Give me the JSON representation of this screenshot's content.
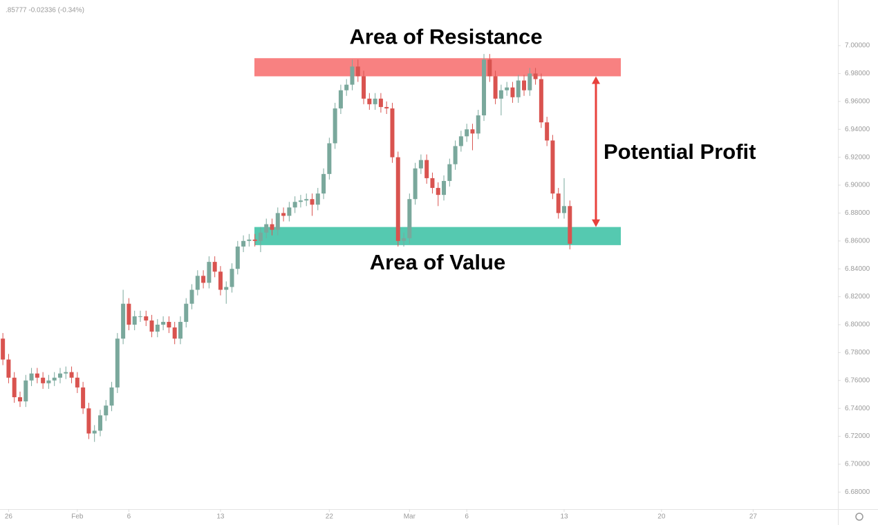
{
  "chart_data": {
    "type": "candlestick",
    "header_text": ".85777 -0.02336 (-0.34%)",
    "up_color": "#7aa89c",
    "down_color": "#d9534f",
    "annotation": "Potential Profit",
    "arrow_color": "#e8413c",
    "zones": [
      {
        "name": "Area of Resistance",
        "from": 6.978,
        "to": 6.991,
        "color": "#f88181"
      },
      {
        "name": "Area of Value",
        "from": 6.857,
        "to": 6.87,
        "color": "#55c9b0"
      }
    ],
    "xlim": [
      -0.5,
      145.8
    ],
    "xticks": [
      {
        "value": 1,
        "label": "26"
      },
      {
        "value": 13,
        "label": "Feb"
      },
      {
        "value": 22,
        "label": "6"
      },
      {
        "value": 38,
        "label": "13"
      },
      {
        "value": 57,
        "label": "22"
      },
      {
        "value": 71,
        "label": "Mar"
      },
      {
        "value": 81,
        "label": "6"
      },
      {
        "value": 98,
        "label": "13"
      },
      {
        "value": 115,
        "label": "20"
      },
      {
        "value": 131,
        "label": "27"
      }
    ],
    "ylim": [
      6.6678,
      7.0327
    ],
    "yticks": [
      {
        "value": 7.0,
        "label": "7.00000"
      },
      {
        "value": 6.98,
        "label": "6.98000"
      },
      {
        "value": 6.96,
        "label": "6.96000"
      },
      {
        "value": 6.94,
        "label": "6.94000"
      },
      {
        "value": 6.92,
        "label": "6.92000"
      },
      {
        "value": 6.9,
        "label": "6.90000"
      },
      {
        "value": 6.88,
        "label": "6.88000"
      },
      {
        "value": 6.86,
        "label": "6.86000"
      },
      {
        "value": 6.84,
        "label": "6.84000"
      },
      {
        "value": 6.82,
        "label": "6.82000"
      },
      {
        "value": 6.8,
        "label": "6.80000"
      },
      {
        "value": 6.78,
        "label": "6.78000"
      },
      {
        "value": 6.76,
        "label": "6.76000"
      },
      {
        "value": 6.74,
        "label": "6.74000"
      },
      {
        "value": 6.72,
        "label": "6.72000"
      },
      {
        "value": 6.7,
        "label": "6.70000"
      },
      {
        "value": 6.68,
        "label": "6.68000"
      }
    ],
    "open": [
      6.79,
      6.775,
      6.762,
      6.748,
      6.745,
      6.76,
      6.765,
      6.762,
      6.758,
      6.76,
      6.762,
      6.765,
      6.766,
      6.762,
      6.755,
      6.74,
      6.722,
      6.724,
      6.735,
      6.742,
      6.755,
      6.79,
      6.815,
      6.8,
      6.806,
      6.806,
      6.803,
      6.795,
      6.8,
      6.802,
      6.798,
      6.79,
      6.802,
      6.815,
      6.825,
      6.835,
      6.83,
      6.845,
      6.838,
      6.825,
      6.827,
      6.84,
      6.856,
      6.86,
      6.861,
      6.86,
      6.866,
      6.872,
      6.868,
      6.88,
      6.878,
      6.884,
      6.888,
      6.889,
      6.89,
      6.886,
      6.894,
      6.908,
      6.93,
      6.955,
      6.968,
      6.972,
      6.985,
      6.978,
      6.962,
      6.958,
      6.962,
      6.956,
      6.955,
      6.92,
      6.86,
      6.862,
      6.89,
      6.912,
      6.918,
      6.905,
      6.898,
      6.893,
      6.903,
      6.915,
      6.928,
      6.935,
      6.94,
      6.937,
      6.95,
      6.99,
      6.978,
      6.962,
      6.968,
      6.97,
      6.963,
      6.975,
      6.968,
      6.98,
      6.976,
      6.945,
      6.932,
      6.894,
      6.88,
      6.885
    ],
    "high": [
      6.794,
      6.779,
      6.766,
      6.752,
      6.764,
      6.769,
      6.769,
      6.766,
      6.764,
      6.766,
      6.769,
      6.77,
      6.77,
      6.766,
      6.759,
      6.744,
      6.728,
      6.739,
      6.746,
      6.759,
      6.794,
      6.825,
      6.819,
      6.81,
      6.81,
      6.81,
      6.807,
      6.804,
      6.806,
      6.806,
      6.802,
      6.806,
      6.819,
      6.829,
      6.839,
      6.839,
      6.849,
      6.849,
      6.842,
      6.831,
      6.844,
      6.86,
      6.864,
      6.865,
      6.865,
      6.87,
      6.876,
      6.876,
      6.884,
      6.884,
      6.888,
      6.892,
      6.893,
      6.894,
      6.894,
      6.898,
      6.912,
      6.934,
      6.959,
      6.972,
      6.976,
      6.99,
      6.99,
      6.982,
      6.966,
      6.966,
      6.966,
      6.96,
      6.959,
      6.924,
      6.866,
      6.894,
      6.916,
      6.922,
      6.922,
      6.909,
      6.902,
      6.907,
      6.919,
      6.932,
      6.939,
      6.944,
      6.944,
      6.954,
      6.994,
      6.994,
      6.982,
      6.972,
      6.974,
      6.974,
      6.979,
      6.979,
      6.984,
      6.984,
      6.98,
      6.949,
      6.936,
      6.898,
      6.905,
      6.889
    ],
    "low": [
      6.771,
      6.758,
      6.744,
      6.741,
      6.741,
      6.756,
      6.758,
      6.754,
      6.754,
      6.756,
      6.758,
      6.761,
      6.758,
      6.751,
      6.736,
      6.718,
      6.716,
      6.72,
      6.731,
      6.738,
      6.751,
      6.786,
      6.796,
      6.796,
      6.802,
      6.799,
      6.791,
      6.791,
      6.796,
      6.794,
      6.786,
      6.786,
      6.798,
      6.811,
      6.821,
      6.826,
      6.826,
      6.834,
      6.821,
      6.815,
      6.823,
      6.836,
      6.852,
      6.856,
      6.856,
      6.852,
      6.862,
      6.864,
      6.864,
      6.874,
      6.874,
      6.88,
      6.884,
      6.885,
      6.878,
      6.882,
      6.89,
      6.904,
      6.926,
      6.951,
      6.964,
      6.968,
      6.974,
      6.958,
      6.954,
      6.954,
      6.952,
      6.951,
      6.916,
      6.856,
      6.856,
      6.858,
      6.886,
      6.908,
      6.901,
      6.894,
      6.885,
      6.889,
      6.899,
      6.911,
      6.924,
      6.931,
      6.925,
      6.933,
      6.946,
      6.974,
      6.958,
      6.95,
      6.964,
      6.959,
      6.959,
      6.964,
      6.964,
      6.972,
      6.941,
      6.928,
      6.89,
      6.876,
      6.876,
      6.854
    ],
    "close": [
      6.775,
      6.762,
      6.748,
      6.745,
      6.76,
      6.765,
      6.762,
      6.758,
      6.76,
      6.762,
      6.765,
      6.766,
      6.762,
      6.755,
      6.74,
      6.722,
      6.724,
      6.735,
      6.742,
      6.755,
      6.79,
      6.815,
      6.8,
      6.806,
      6.806,
      6.803,
      6.795,
      6.8,
      6.802,
      6.798,
      6.79,
      6.802,
      6.815,
      6.825,
      6.835,
      6.83,
      6.845,
      6.838,
      6.825,
      6.827,
      6.84,
      6.856,
      6.86,
      6.861,
      6.86,
      6.866,
      6.872,
      6.868,
      6.88,
      6.878,
      6.884,
      6.888,
      6.889,
      6.89,
      6.886,
      6.894,
      6.908,
      6.93,
      6.955,
      6.968,
      6.972,
      6.985,
      6.978,
      6.962,
      6.958,
      6.962,
      6.956,
      6.955,
      6.92,
      6.86,
      6.862,
      6.89,
      6.912,
      6.918,
      6.905,
      6.898,
      6.893,
      6.903,
      6.915,
      6.928,
      6.935,
      6.94,
      6.937,
      6.95,
      6.99,
      6.978,
      6.962,
      6.968,
      6.97,
      6.963,
      6.975,
      6.968,
      6.98,
      6.976,
      6.945,
      6.932,
      6.894,
      6.88,
      6.885,
      6.858
    ]
  }
}
